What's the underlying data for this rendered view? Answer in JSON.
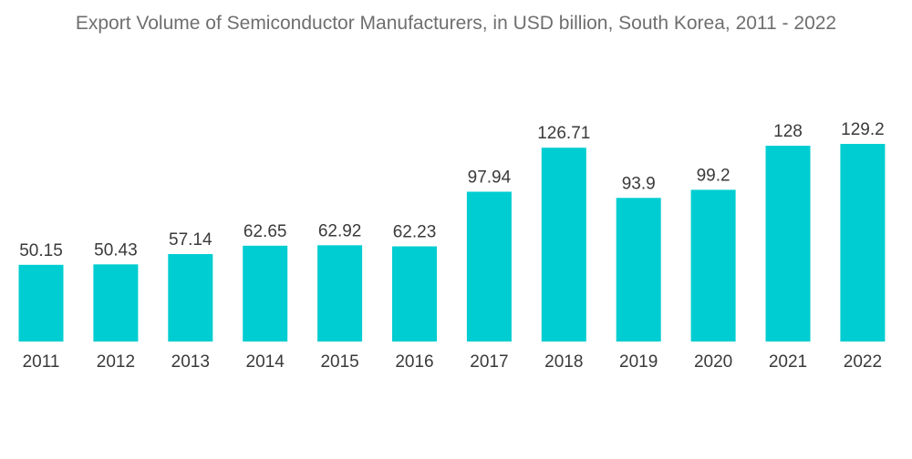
{
  "chart_data": {
    "type": "bar",
    "title": "Export Volume of Semiconductor Manufacturers, in USD billion, South Korea, 2011 - 2022",
    "xlabel": "",
    "ylabel": "",
    "categories": [
      "2011",
      "2012",
      "2013",
      "2014",
      "2015",
      "2016",
      "2017",
      "2018",
      "2019",
      "2020",
      "2021",
      "2022"
    ],
    "values": [
      50.15,
      50.43,
      57.14,
      62.65,
      62.92,
      62.23,
      97.94,
      126.71,
      93.9,
      99.2,
      128,
      129.2
    ],
    "value_labels": [
      "50.15",
      "50.43",
      "57.14",
      "62.65",
      "62.92",
      "62.23",
      "97.94",
      "126.71",
      "93.9",
      "99.2",
      "128",
      "129.2"
    ],
    "ylim": [
      0,
      129.2
    ],
    "grid": false,
    "legend": "none",
    "bar_color": "#00cdd1"
  }
}
